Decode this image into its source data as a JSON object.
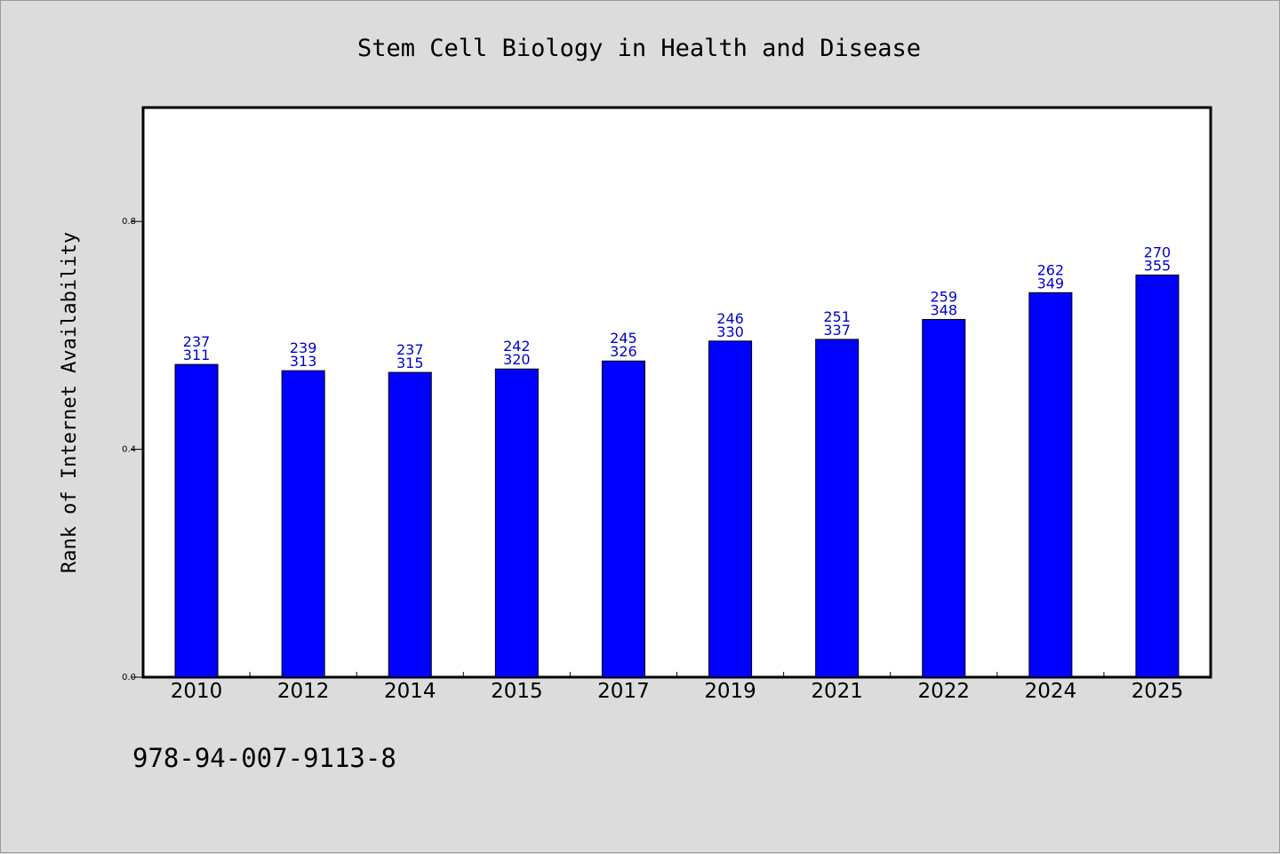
{
  "chart_data": {
    "type": "bar",
    "title": "Stem Cell Biology in Health and Disease",
    "xlabel": "",
    "ylabel": "Rank of Internet Availability",
    "ylim": [
      0,
      1.0
    ],
    "yticks": [
      "0.0",
      "0.4",
      "0.8"
    ],
    "categories": [
      "2010",
      "2012",
      "2014",
      "2015",
      "2017",
      "2019",
      "2021",
      "2022",
      "2024",
      "2025"
    ],
    "values": [
      0.549,
      0.538,
      0.535,
      0.541,
      0.555,
      0.59,
      0.593,
      0.628,
      0.675,
      0.706
    ],
    "label_top": [
      "237",
      "239",
      "237",
      "242",
      "245",
      "246",
      "251",
      "259",
      "262",
      "270"
    ],
    "label_bottom": [
      "311",
      "313",
      "315",
      "320",
      "326",
      "330",
      "337",
      "348",
      "349",
      "355"
    ],
    "grid": false,
    "legend": "none",
    "bar_color": "#0000ff",
    "label_color": "#0000cc"
  },
  "footer": {
    "isbn": "978-94-007-9113-8"
  },
  "colors": {
    "background": "#dcdcdc",
    "plot_background": "#ffffff"
  }
}
